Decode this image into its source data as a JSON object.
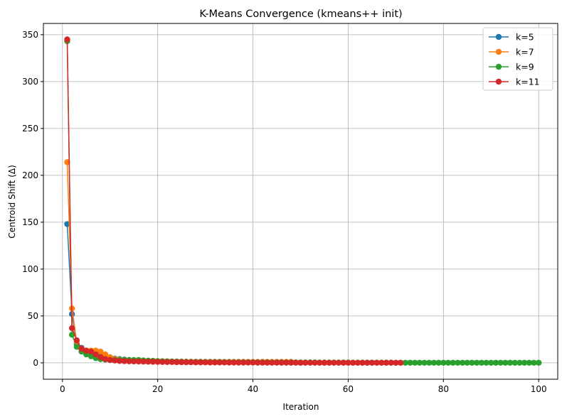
{
  "chart_data": {
    "type": "line",
    "title": "K-Means Convergence (kmeans++ init)",
    "xlabel": "Iteration",
    "ylabel": "Centroid Shift (Δ)",
    "xlim": [
      -4,
      104
    ],
    "ylim": [
      -17.5,
      362
    ],
    "xticks": [
      0,
      20,
      40,
      60,
      80,
      100
    ],
    "yticks": [
      0,
      50,
      100,
      150,
      200,
      250,
      300,
      350
    ],
    "grid": true,
    "legend_position": "top-right",
    "series": [
      {
        "name": "k=5",
        "color": "#1f77b4",
        "x": [
          1,
          2,
          3,
          4,
          5,
          6,
          7,
          8,
          9,
          10,
          11,
          12,
          13,
          14,
          15,
          16,
          17,
          18,
          19,
          20,
          21,
          22,
          23,
          24,
          25,
          26,
          27,
          28,
          29,
          30,
          31,
          32,
          33,
          34,
          35,
          36,
          37,
          38,
          39,
          40,
          41,
          42,
          43,
          44,
          45,
          46,
          47,
          48,
          49,
          50
        ],
        "values": [
          148,
          52,
          20,
          16,
          13,
          11,
          9,
          7,
          6,
          5,
          4.5,
          4,
          3.5,
          3,
          2.8,
          2.6,
          2.4,
          2.2,
          2,
          1.8,
          1.6,
          1.5,
          1.4,
          1.3,
          1.2,
          1.1,
          1,
          1,
          0.9,
          0.9,
          0.8,
          0.8,
          0.7,
          0.7,
          0.6,
          0.6,
          0.5,
          0.5,
          0.5,
          0.4,
          0.4,
          0.4,
          0.3,
          0.3,
          0.3,
          0.3,
          0.2,
          0.2,
          0.2,
          0.1
        ]
      },
      {
        "name": "k=7",
        "color": "#ff7f0e",
        "x": [
          1,
          2,
          3,
          4,
          5,
          6,
          7,
          8,
          9,
          10,
          11,
          12,
          13,
          14,
          15,
          16,
          17,
          18,
          19,
          20,
          21,
          22,
          23,
          24,
          25,
          26,
          27,
          28,
          29,
          30,
          31,
          32,
          33,
          34,
          35,
          36,
          37,
          38,
          39,
          40,
          41,
          42,
          43,
          44,
          45,
          46,
          47,
          48
        ],
        "values": [
          214,
          58,
          22,
          15,
          13,
          13,
          13,
          12,
          9,
          6,
          4,
          3.5,
          3,
          3,
          2.5,
          2.5,
          2.2,
          2,
          2,
          1.8,
          1.8,
          1.6,
          1.5,
          1.4,
          1.3,
          1.2,
          1.2,
          1.1,
          1.1,
          1,
          1,
          1,
          1,
          1,
          1,
          1,
          1,
          1,
          1,
          1,
          1,
          1,
          1,
          1,
          1,
          1,
          1,
          1
        ]
      },
      {
        "name": "k=9",
        "color": "#2ca02c",
        "x": [
          1,
          2,
          3,
          4,
          5,
          6,
          7,
          8,
          9,
          10,
          11,
          12,
          13,
          14,
          15,
          16,
          17,
          18,
          19,
          20,
          21,
          22,
          23,
          24,
          25,
          26,
          27,
          28,
          29,
          30,
          31,
          32,
          33,
          34,
          35,
          36,
          37,
          38,
          39,
          40,
          41,
          42,
          43,
          44,
          45,
          46,
          47,
          48,
          49,
          50,
          51,
          52,
          53,
          54,
          55,
          56,
          57,
          58,
          59,
          60,
          61,
          62,
          63,
          64,
          65,
          66,
          67,
          68,
          69,
          70,
          71,
          72,
          73,
          74,
          75,
          76,
          77,
          78,
          79,
          80,
          81,
          82,
          83,
          84,
          85,
          86,
          87,
          88,
          89,
          90,
          91,
          92,
          93,
          94,
          95,
          96,
          97,
          98,
          99,
          100
        ],
        "values": [
          343,
          30,
          17,
          12,
          9,
          7,
          5,
          4,
          3.5,
          3,
          3,
          3,
          3,
          3,
          3,
          3,
          2.5,
          2.2,
          2,
          1.8,
          1.6,
          1.5,
          1.4,
          1.3,
          1.2,
          1.1,
          1,
          1,
          1,
          1,
          0.9,
          0.9,
          0.9,
          0.8,
          0.8,
          0.8,
          0.7,
          0.7,
          0.7,
          0.6,
          0.6,
          0.6,
          0.6,
          0.5,
          0.5,
          0.5,
          0.5,
          0.5,
          0.4,
          0.4,
          0.4,
          0.4,
          0.4,
          0.3,
          0.3,
          0.3,
          0.3,
          0.3,
          0.3,
          0.3,
          0.2,
          0.2,
          0.2,
          0.2,
          0.2,
          0.2,
          0.2,
          0.2,
          0.2,
          0.1,
          0.1,
          0.1,
          0.1,
          0.1,
          0.1,
          0.1,
          0.1,
          0.1,
          0.1,
          0.1,
          0.1,
          0.1,
          0.1,
          0.1,
          0.1,
          0.1,
          0.1,
          0.1,
          0.1,
          0.1,
          0.1,
          0.1,
          0.1,
          0.1,
          0.1,
          0.1,
          0.1,
          0.1,
          0.1,
          0.1
        ]
      },
      {
        "name": "k=11",
        "color": "#d62728",
        "x": [
          1,
          2,
          3,
          4,
          5,
          6,
          7,
          8,
          9,
          10,
          11,
          12,
          13,
          14,
          15,
          16,
          17,
          18,
          19,
          20,
          21,
          22,
          23,
          24,
          25,
          26,
          27,
          28,
          29,
          30,
          31,
          32,
          33,
          34,
          35,
          36,
          37,
          38,
          39,
          40,
          41,
          42,
          43,
          44,
          45,
          46,
          47,
          48,
          49,
          50,
          51,
          52,
          53,
          54,
          55,
          56,
          57,
          58,
          59,
          60,
          61,
          62,
          63,
          64,
          65,
          66,
          67,
          68,
          69,
          70,
          71
        ],
        "values": [
          345,
          37,
          24,
          15,
          13,
          12,
          9,
          6,
          4,
          3,
          2.5,
          2,
          1.8,
          1.6,
          1.5,
          1.4,
          1.3,
          1.2,
          1.1,
          1,
          0.9,
          0.8,
          0.8,
          0.7,
          0.7,
          0.6,
          0.6,
          0.5,
          0.5,
          0.5,
          0.4,
          0.4,
          0.4,
          0.4,
          0.3,
          0.3,
          0.3,
          0.3,
          0.3,
          0.3,
          0.2,
          0.2,
          0.2,
          0.2,
          0.2,
          0.2,
          0.2,
          0.2,
          0.2,
          0.1,
          0.1,
          0.1,
          0.1,
          0.1,
          0.1,
          0.1,
          0.1,
          0.1,
          0.1,
          0.1,
          0.1,
          0.1,
          0.1,
          0.1,
          0.1,
          0.1,
          0.1,
          0.1,
          0.1,
          0.1,
          0.1
        ]
      }
    ]
  }
}
